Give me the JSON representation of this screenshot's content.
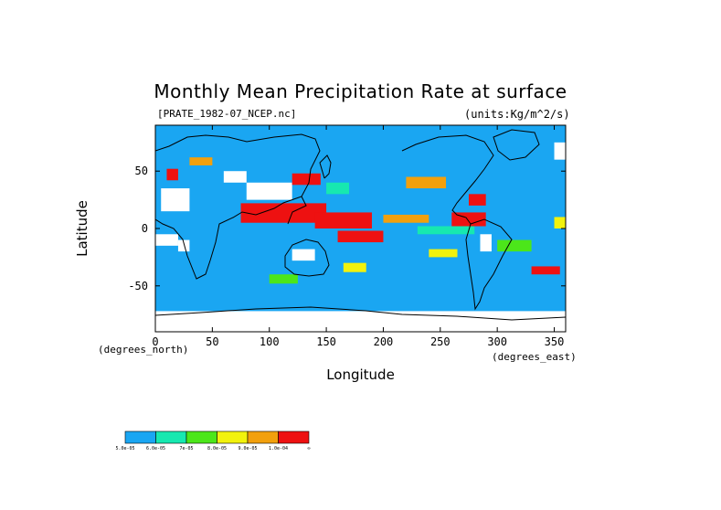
{
  "chart_data": {
    "type": "heatmap",
    "title": "Monthly Mean Precipitation Rate at surface",
    "file_label": "[PRATE_1982-07_NCEP.nc]",
    "units": "(units:Kg/m^2/s)",
    "xlabel": "Longitude",
    "ylabel": "Latitude",
    "x_units_label": "(degrees_east)",
    "y_units_label": "(degrees_north)",
    "xlim": [
      0,
      360
    ],
    "ylim": [
      -90,
      90
    ],
    "x_ticks": [
      0,
      50,
      100,
      150,
      200,
      250,
      300,
      350
    ],
    "y_ticks": [
      50,
      0,
      -50
    ],
    "grid": false,
    "colorbar": {
      "orientation": "horizontal",
      "placement": "bottom-left",
      "colors": [
        "#1aa6f2",
        "#17e8b0",
        "#4ce61a",
        "#f2f20d",
        "#f2a00d",
        "#ee1111"
      ],
      "labels": [
        "5.0e-05",
        "6.0e-05",
        "7e-05",
        "8.0e-05",
        "9.0e-05",
        "1.0e-04",
        "∞"
      ]
    },
    "regions": [
      {
        "level": 5,
        "lon": [
          75,
          150
        ],
        "lat": [
          5,
          22
        ]
      },
      {
        "level": 5,
        "lon": [
          140,
          190
        ],
        "lat": [
          0,
          14
        ]
      },
      {
        "level": 5,
        "lon": [
          160,
          200
        ],
        "lat": [
          -12,
          -2
        ]
      },
      {
        "level": 5,
        "lon": [
          260,
          290
        ],
        "lat": [
          2,
          14
        ]
      },
      {
        "level": 5,
        "lon": [
          275,
          290
        ],
        "lat": [
          20,
          30
        ]
      },
      {
        "level": 5,
        "lon": [
          120,
          145
        ],
        "lat": [
          38,
          48
        ]
      },
      {
        "level": 5,
        "lon": [
          10,
          20
        ],
        "lat": [
          42,
          52
        ]
      },
      {
        "level": 5,
        "lon": [
          330,
          355
        ],
        "lat": [
          -40,
          -33
        ]
      },
      {
        "level": 4,
        "lon": [
          200,
          240
        ],
        "lat": [
          5,
          12
        ]
      },
      {
        "level": 4,
        "lon": [
          220,
          255
        ],
        "lat": [
          35,
          45
        ]
      },
      {
        "level": 4,
        "lon": [
          30,
          50
        ],
        "lat": [
          55,
          62
        ]
      },
      {
        "level": 3,
        "lon": [
          240,
          265
        ],
        "lat": [
          -25,
          -18
        ]
      },
      {
        "level": 3,
        "lon": [
          350,
          360
        ],
        "lat": [
          0,
          10
        ]
      },
      {
        "level": 3,
        "lon": [
          165,
          185
        ],
        "lat": [
          -38,
          -30
        ]
      },
      {
        "level": 2,
        "lon": [
          300,
          330
        ],
        "lat": [
          -20,
          -10
        ]
      },
      {
        "level": 2,
        "lon": [
          100,
          125
        ],
        "lat": [
          -48,
          -40
        ]
      },
      {
        "level": 1,
        "lon": [
          230,
          280
        ],
        "lat": [
          -5,
          2
        ]
      },
      {
        "level": 1,
        "lon": [
          150,
          170
        ],
        "lat": [
          30,
          40
        ]
      }
    ],
    "no_data_regions": [
      {
        "lon": [
          5,
          30
        ],
        "lat": [
          15,
          35
        ]
      },
      {
        "lon": [
          60,
          80
        ],
        "lat": [
          40,
          50
        ]
      },
      {
        "lon": [
          80,
          120
        ],
        "lat": [
          25,
          40
        ]
      },
      {
        "lon": [
          0,
          20
        ],
        "lat": [
          -15,
          -5
        ]
      },
      {
        "lon": [
          20,
          30
        ],
        "lat": [
          -20,
          -10
        ]
      },
      {
        "lon": [
          120,
          140
        ],
        "lat": [
          -28,
          -18
        ]
      },
      {
        "lon": [
          285,
          295
        ],
        "lat": [
          -20,
          -5
        ]
      },
      {
        "lon": [
          350,
          360
        ],
        "lat": [
          60,
          75
        ]
      },
      {
        "lon": [
          0,
          360
        ],
        "lat": [
          -90,
          -72
        ]
      }
    ]
  }
}
